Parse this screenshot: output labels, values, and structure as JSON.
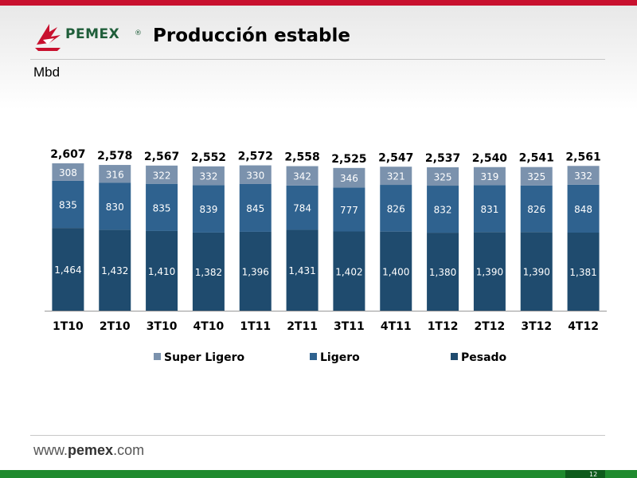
{
  "header": {
    "logo_text": "PEMEX",
    "logo_reg": "®",
    "title": "Producción estable",
    "unit": "Mbd"
  },
  "footer": {
    "url_prefix": "www.",
    "url_brand": "pemex",
    "url_suffix": ".com",
    "page_number": "12"
  },
  "colors": {
    "super_ligero": "#7b92ad",
    "ligero": "#2f628f",
    "pesado": "#1f4b6e",
    "top_bar": "#c8102e",
    "footer_bar": "#1f8a2e",
    "logo_green": "#1f5e3a",
    "logo_red": "#c8102e"
  },
  "chart_data": {
    "type": "bar",
    "stacked": true,
    "categories": [
      "1T10",
      "2T10",
      "3T10",
      "4T10",
      "1T11",
      "2T11",
      "3T11",
      "4T11",
      "1T12",
      "2T12",
      "3T12",
      "4T12"
    ],
    "series": [
      {
        "name": "Pesado",
        "values": [
          1464,
          1432,
          1410,
          1382,
          1396,
          1431,
          1402,
          1400,
          1380,
          1390,
          1390,
          1381
        ],
        "labels": [
          "1,464",
          "1,432",
          "1,410",
          "1,382",
          "1,396",
          "1,431",
          "1,402",
          "1,400",
          "1,380",
          "1,390",
          "1,390",
          "1,381"
        ]
      },
      {
        "name": "Ligero",
        "values": [
          835,
          830,
          835,
          839,
          845,
          784,
          777,
          826,
          832,
          831,
          826,
          848
        ],
        "labels": [
          "835",
          "830",
          "835",
          "839",
          "845",
          "784",
          "777",
          "826",
          "832",
          "831",
          "826",
          "848"
        ]
      },
      {
        "name": "Super Ligero",
        "values": [
          308,
          316,
          322,
          332,
          330,
          342,
          346,
          321,
          325,
          319,
          325,
          332
        ],
        "labels": [
          "308",
          "316",
          "322",
          "332",
          "330",
          "342",
          "346",
          "321",
          "325",
          "319",
          "325",
          "332"
        ]
      }
    ],
    "totals": [
      "2,607",
      "2,578",
      "2,567",
      "2,552",
      "2,572",
      "2,558",
      "2,525",
      "2,547",
      "2,537",
      "2,540",
      "2,541",
      "2,561"
    ],
    "legend": [
      "Super Ligero",
      "Ligero",
      "Pesado"
    ],
    "legend_position": "bottom",
    "ylim": [
      0,
      2700
    ],
    "grid": false
  }
}
